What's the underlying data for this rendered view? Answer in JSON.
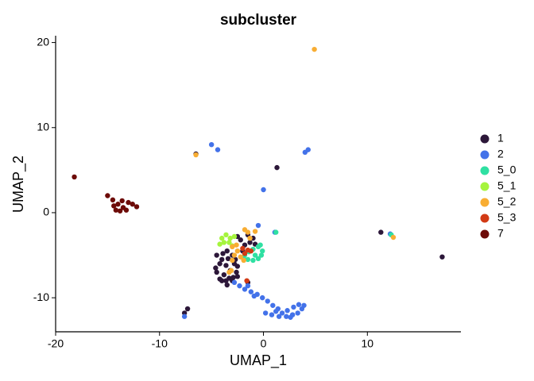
{
  "chart_data": {
    "type": "scatter",
    "title": "subcluster",
    "x_label": "UMAP_1",
    "y_label": "UMAP_2",
    "xlim": [
      -20,
      19
    ],
    "ylim": [
      -14,
      20.8
    ],
    "xticks": [
      -20,
      -10,
      0,
      10
    ],
    "yticks": [
      -10,
      0,
      10,
      20
    ],
    "legend": "right",
    "grid": false,
    "series": [
      {
        "name": "1",
        "color": "#2c1739",
        "x": [
          -4.5,
          -4.2,
          -4.5,
          -4,
          -3.5,
          -3,
          -2.6,
          -2.8,
          -3,
          -3.5,
          -4,
          -3.6,
          -3.2,
          -3.8,
          -3.3,
          -4.6,
          -2.7,
          -3.9,
          -3.4,
          -2.9,
          -4.2,
          -3.6,
          -2.5,
          -2.2,
          -1.8,
          -1.3,
          -1.0,
          -2.5,
          -1.5,
          -0.8,
          -2.0,
          1.3,
          11.3,
          17.2,
          -7.3,
          -7.6,
          -6.5,
          -1.5,
          -2.5
        ],
        "y": [
          -5,
          -6,
          -7,
          -8,
          -8.5,
          -8,
          -7,
          -6,
          -5,
          -4.5,
          -5.5,
          -6.2,
          -6.8,
          -7.3,
          -7.7,
          -6.5,
          -5.5,
          -4.8,
          -5.4,
          -7.6,
          -7.8,
          -8,
          -6.3,
          -3.2,
          -3.8,
          -3.5,
          -3.0,
          -2.8,
          -2.6,
          -3.7,
          -4.5,
          5.3,
          -2.3,
          -5.2,
          -11.3,
          -11.8,
          6.9,
          -8.2,
          -7.5
        ]
      },
      {
        "name": "2",
        "color": "#4372e9",
        "x": [
          -2.3,
          -1.8,
          -1.2,
          -0.6,
          -0.1,
          0.4,
          0.9,
          1.4,
          0.2,
          0.8,
          1.5,
          2.2,
          2.8,
          3.3,
          3.7,
          3.4,
          2.9,
          2.3,
          1.8,
          1.2,
          3.9,
          2.6,
          -1.5,
          -2.8,
          -0.9,
          -5,
          -4.4,
          4.3,
          4.0,
          0,
          -7.6,
          12.2,
          1.1,
          -0.5
        ],
        "y": [
          -8.6,
          -9,
          -9.3,
          -9.6,
          -10,
          -10.4,
          -10.9,
          -11.3,
          -11.8,
          -12,
          -12.2,
          -12.2,
          -12,
          -11.8,
          -11.3,
          -10.8,
          -11.1,
          -11.5,
          -11.8,
          -11.6,
          -10.9,
          -12.3,
          -8.6,
          -8.2,
          -9.8,
          8,
          7.4,
          7.4,
          7.1,
          2.7,
          -12.2,
          -2.5,
          -2.3,
          -1.5
        ]
      },
      {
        "name": "5_0",
        "color": "#2fe0a2",
        "x": [
          -1.8,
          -1.5,
          -1,
          -0.5,
          -0.2,
          -0.1,
          -0.5,
          -1,
          -1.4,
          -0.8,
          -1.9,
          -0.3,
          1.2,
          12.3
        ],
        "y": [
          -5,
          -5.5,
          -5.6,
          -5.4,
          -5,
          -4.5,
          -4,
          -4.3,
          -4.6,
          -5,
          -5.4,
          -3.8,
          -2.3,
          -2.6
        ]
      },
      {
        "name": "5_1",
        "color": "#a5f43d",
        "x": [
          -4,
          -3.6,
          -3.2,
          -3.8,
          -3.3,
          -2.8,
          -4.2,
          -3
        ],
        "y": [
          -3,
          -2.6,
          -3,
          -3.5,
          -3.5,
          -2.8,
          -3.7,
          -3.9
        ]
      },
      {
        "name": "5_2",
        "color": "#f8ad33",
        "x": [
          -3,
          -2.5,
          -2.8,
          -2.2,
          -2.6,
          -1.8,
          -1.5,
          -1.3,
          -0.8,
          -3.3,
          -3.1,
          4.9,
          -6.5,
          12.5,
          -1.9,
          -3
        ],
        "y": [
          -4,
          -4.5,
          -5,
          -5.2,
          -3.8,
          -2,
          -2.3,
          -3,
          -2.2,
          -7,
          -6.8,
          19.2,
          6.8,
          -2.9,
          -5.6,
          -5.6
        ]
      },
      {
        "name": "5_3",
        "color": "#d23a15",
        "x": [
          -2,
          -1.5,
          -1.8,
          -1.2,
          -1.6
        ],
        "y": [
          -4.2,
          -4.4,
          -4.8,
          -4.5,
          -8
        ]
      },
      {
        "name": "7",
        "color": "#6d0b08",
        "x": [
          -18.2,
          -15,
          -14.5,
          -14,
          -14.4,
          -13.8,
          -13.5,
          -13,
          -12.6,
          -12.2,
          -13.2,
          -14.2,
          -13.6
        ],
        "y": [
          4.2,
          2,
          1.5,
          1,
          0.8,
          0.2,
          0.6,
          1.2,
          1,
          0.7,
          0.3,
          0.3,
          1.4
        ]
      }
    ]
  }
}
